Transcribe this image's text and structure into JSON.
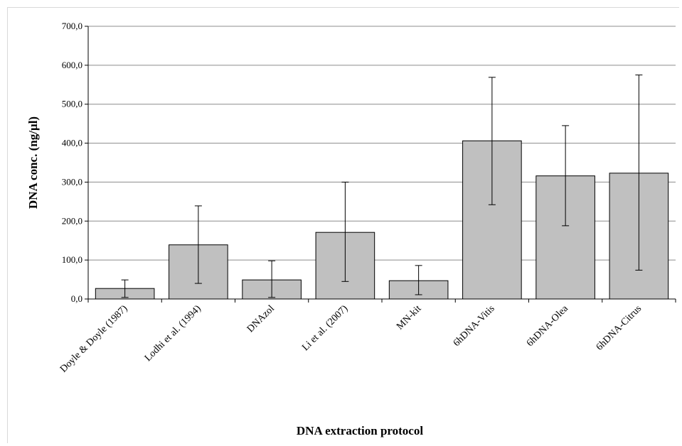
{
  "chart_data": {
    "type": "bar",
    "categories": [
      "Doyle & Doyle (1987)",
      "Lodhi et al. (1994)",
      "DNAzol",
      "Li et al. (2007)",
      "MN-kit",
      "6hDNA-Vitis",
      "6hDNA-Olea",
      "6hDNA-Citrus"
    ],
    "values": [
      27,
      139,
      49,
      171,
      47,
      406,
      316,
      323
    ],
    "error_low": [
      4,
      40,
      4,
      45,
      11,
      242,
      188,
      74
    ],
    "error_high": [
      49,
      239,
      98,
      300,
      86,
      569,
      445,
      575
    ],
    "xlabel": "DNA extraction protocol",
    "ylabel": "DNA conc. (ng/µl)",
    "ylim": [
      0,
      700
    ],
    "yticks": [
      "0,0",
      "100,0",
      "200,0",
      "300,0",
      "400,0",
      "500,0",
      "600,0",
      "700,0"
    ],
    "grid": true,
    "bar_color": "#c0c0c0"
  }
}
